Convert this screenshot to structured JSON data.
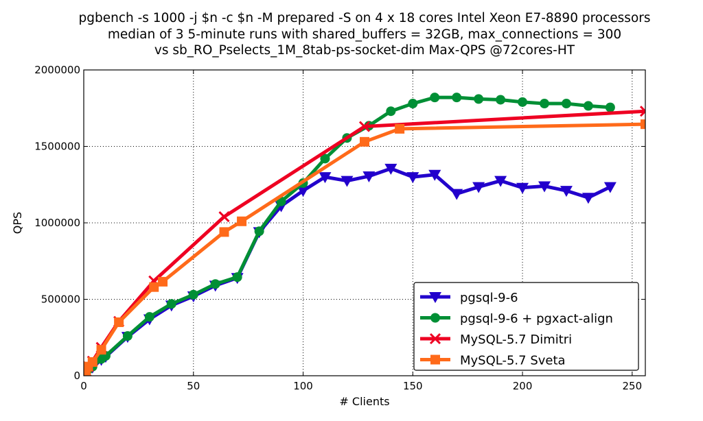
{
  "chart_data": {
    "type": "line",
    "title": [
      "pgbench -s 1000 -j $n -c $n -M prepared -S on 4 x 18 cores Intel Xeon E7-8890 processors",
      "median of 3 5-minute runs with shared_buffers = 32GB, max_connections = 300",
      "vs sb_RO_Pselects_1M_8tab-ps-socket-dim Max-QPS @72cores-HT"
    ],
    "xlabel": "# Clients",
    "ylabel": "QPS",
    "xlim": [
      0,
      256
    ],
    "ylim": [
      0,
      2000000
    ],
    "xticks": [
      0,
      50,
      100,
      150,
      200,
      250
    ],
    "yticks": [
      0,
      500000,
      1000000,
      1500000,
      2000000
    ],
    "grid": true,
    "legend": "lower-right",
    "series": [
      {
        "name": "pgsql-9-6",
        "color": "#2200cc",
        "marker": "triangle-down",
        "x": [
          1,
          2,
          4,
          8,
          10,
          20,
          30,
          40,
          50,
          60,
          70,
          80,
          90,
          100,
          110,
          120,
          130,
          140,
          150,
          160,
          170,
          180,
          190,
          200,
          210,
          220,
          230,
          240
        ],
        "y": [
          15000,
          35000,
          55000,
          105000,
          125000,
          255000,
          370000,
          460000,
          520000,
          590000,
          640000,
          940000,
          1110000,
          1210000,
          1300000,
          1275000,
          1305000,
          1355000,
          1300000,
          1315000,
          1190000,
          1235000,
          1275000,
          1230000,
          1240000,
          1210000,
          1165000,
          1235000
        ]
      },
      {
        "name": "pgsql-9-6 + pgxact-align",
        "color": "#008f35",
        "marker": "circle",
        "x": [
          1,
          2,
          4,
          8,
          10,
          20,
          30,
          40,
          50,
          60,
          70,
          80,
          90,
          100,
          110,
          120,
          130,
          140,
          150,
          160,
          170,
          180,
          190,
          200,
          210,
          220,
          230,
          240
        ],
        "y": [
          20000,
          40000,
          60000,
          110000,
          130000,
          260000,
          385000,
          470000,
          530000,
          600000,
          645000,
          945000,
          1140000,
          1260000,
          1420000,
          1555000,
          1635000,
          1730000,
          1780000,
          1820000,
          1820000,
          1810000,
          1805000,
          1790000,
          1780000,
          1780000,
          1765000,
          1755000
        ]
      },
      {
        "name": "MySQL-5.7 Dimitri",
        "color": "#ee0022",
        "marker": "x",
        "x": [
          1,
          2,
          4,
          8,
          16,
          32,
          64,
          128,
          256
        ],
        "y": [
          30000,
          60000,
          95000,
          185000,
          355000,
          620000,
          1040000,
          1630000,
          1730000
        ]
      },
      {
        "name": "MySQL-5.7 Sveta",
        "color": "#ff6a1a",
        "marker": "square",
        "x": [
          1,
          2,
          4,
          8,
          16,
          32,
          36,
          64,
          72,
          128,
          144,
          256
        ],
        "y": [
          30000,
          60000,
          90000,
          170000,
          350000,
          580000,
          615000,
          940000,
          1010000,
          1530000,
          1615000,
          1645000
        ]
      }
    ]
  }
}
